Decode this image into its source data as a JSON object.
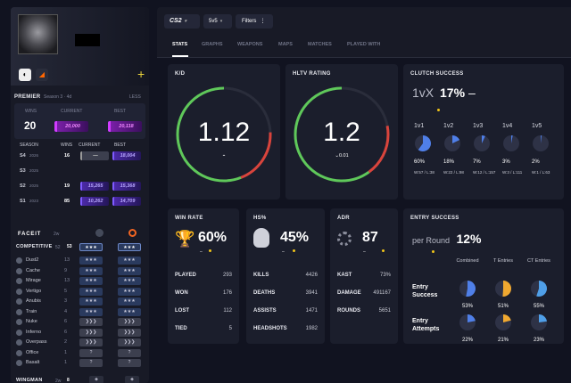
{
  "game": "CS2",
  "mode": "5v5",
  "filters_label": "Filters",
  "tabs": [
    "STATS",
    "GRAPHS",
    "WEAPONS",
    "MAPS",
    "MATCHES",
    "PLAYED WITH"
  ],
  "premier": {
    "title": "PREMIER",
    "season": "Season 3 · 4d",
    "less": "LESS",
    "wins_label": "WINS",
    "current_label": "CURRENT",
    "best_label": "BEST",
    "wins": "20",
    "current": "20,000",
    "best": "20,118",
    "season_label": "SEASON",
    "seasons": [
      {
        "name": "S4",
        "year": "2026",
        "wins": "16",
        "current": "—",
        "best": "18,004"
      },
      {
        "name": "S3",
        "year": "2025",
        "wins": "",
        "current": "",
        "best": ""
      },
      {
        "name": "S2",
        "year": "2025",
        "wins": "19",
        "current": "15,265",
        "best": "15,368"
      },
      {
        "name": "S1",
        "year": "2023",
        "wins": "85",
        "current": "10,262",
        "best": "14,709"
      }
    ]
  },
  "competitive": {
    "faceit": "FACEIT",
    "label": "COMPETITIVE",
    "num1": "52",
    "num2": "53",
    "maps": [
      {
        "name": "Dust2",
        "n": "13"
      },
      {
        "name": "Cache",
        "n": "9"
      },
      {
        "name": "Mirage",
        "n": "13"
      },
      {
        "name": "Vertigo",
        "n": "5"
      },
      {
        "name": "Anubis",
        "n": "3"
      },
      {
        "name": "Train",
        "n": "4"
      },
      {
        "name": "Nuke",
        "n": "6"
      },
      {
        "name": "Inferno",
        "n": "6"
      },
      {
        "name": "Overpass",
        "n": "2"
      },
      {
        "name": "Office",
        "n": "1"
      },
      {
        "name": "Basalt",
        "n": "1"
      }
    ],
    "wingman": "WINGMAN",
    "wingman_n": "8",
    "q": "?"
  },
  "kd": {
    "title": "K/D",
    "value": "1.12",
    "sub": "-",
    "ratio": 0.56
  },
  "hltv": {
    "title": "HLTV RATING",
    "value": "1.2",
    "sub": "0.01",
    "ratio": 0.6
  },
  "clutch": {
    "title": "CLUTCH SUCCESS",
    "label": "1vX",
    "pct": "17%",
    "dash": "–",
    "cols": [
      {
        "label": "1v1",
        "pct": "60%",
        "ratio": 0.6,
        "detail": "W:57 / L:38"
      },
      {
        "label": "1v2",
        "pct": "18%",
        "ratio": 0.18,
        "detail": "W:22 / L:98"
      },
      {
        "label": "1v3",
        "pct": "7%",
        "ratio": 0.07,
        "detail": "W:12 / L:157"
      },
      {
        "label": "1v4",
        "pct": "3%",
        "ratio": 0.03,
        "detail": "W:3 / L:111"
      },
      {
        "label": "1v5",
        "pct": "2%",
        "ratio": 0.02,
        "detail": "W:1 / L:63"
      }
    ]
  },
  "winrate": {
    "title": "WIN RATE",
    "pct": "60%",
    "dash": "–",
    "rows": [
      {
        "k": "PLAYED",
        "v": "293"
      },
      {
        "k": "WON",
        "v": "176"
      },
      {
        "k": "LOST",
        "v": "112"
      },
      {
        "k": "TIED",
        "v": "5"
      }
    ]
  },
  "hs": {
    "title": "HS%",
    "pct": "45%",
    "dash": "–",
    "rows": [
      {
        "k": "KILLS",
        "v": "4426"
      },
      {
        "k": "DEATHS",
        "v": "3941"
      },
      {
        "k": "ASSISTS",
        "v": "1471"
      },
      {
        "k": "HEADSHOTS",
        "v": "1982"
      }
    ]
  },
  "adr": {
    "title": "ADR",
    "value": "87",
    "dash": "–",
    "rows": [
      {
        "k": "KAST",
        "v": "73%"
      },
      {
        "k": "DAMAGE",
        "v": "491167"
      },
      {
        "k": "ROUNDS",
        "v": "5651"
      }
    ]
  },
  "entry": {
    "title": "ENTRY SUCCESS",
    "label": "per Round",
    "pct": "12%",
    "headers": [
      "Combined",
      "T Entries",
      "CT Entries"
    ],
    "rows": [
      {
        "name": "Entry Success",
        "vals": [
          {
            "p": "53%",
            "r": 0.53
          },
          {
            "p": "51%",
            "r": 0.51
          },
          {
            "p": "55%",
            "r": 0.55
          }
        ]
      },
      {
        "name": "Entry Attempts",
        "vals": [
          {
            "p": "22%",
            "r": 0.22
          },
          {
            "p": "21%",
            "r": 0.21
          },
          {
            "p": "23%",
            "r": 0.23
          }
        ]
      }
    ]
  }
}
